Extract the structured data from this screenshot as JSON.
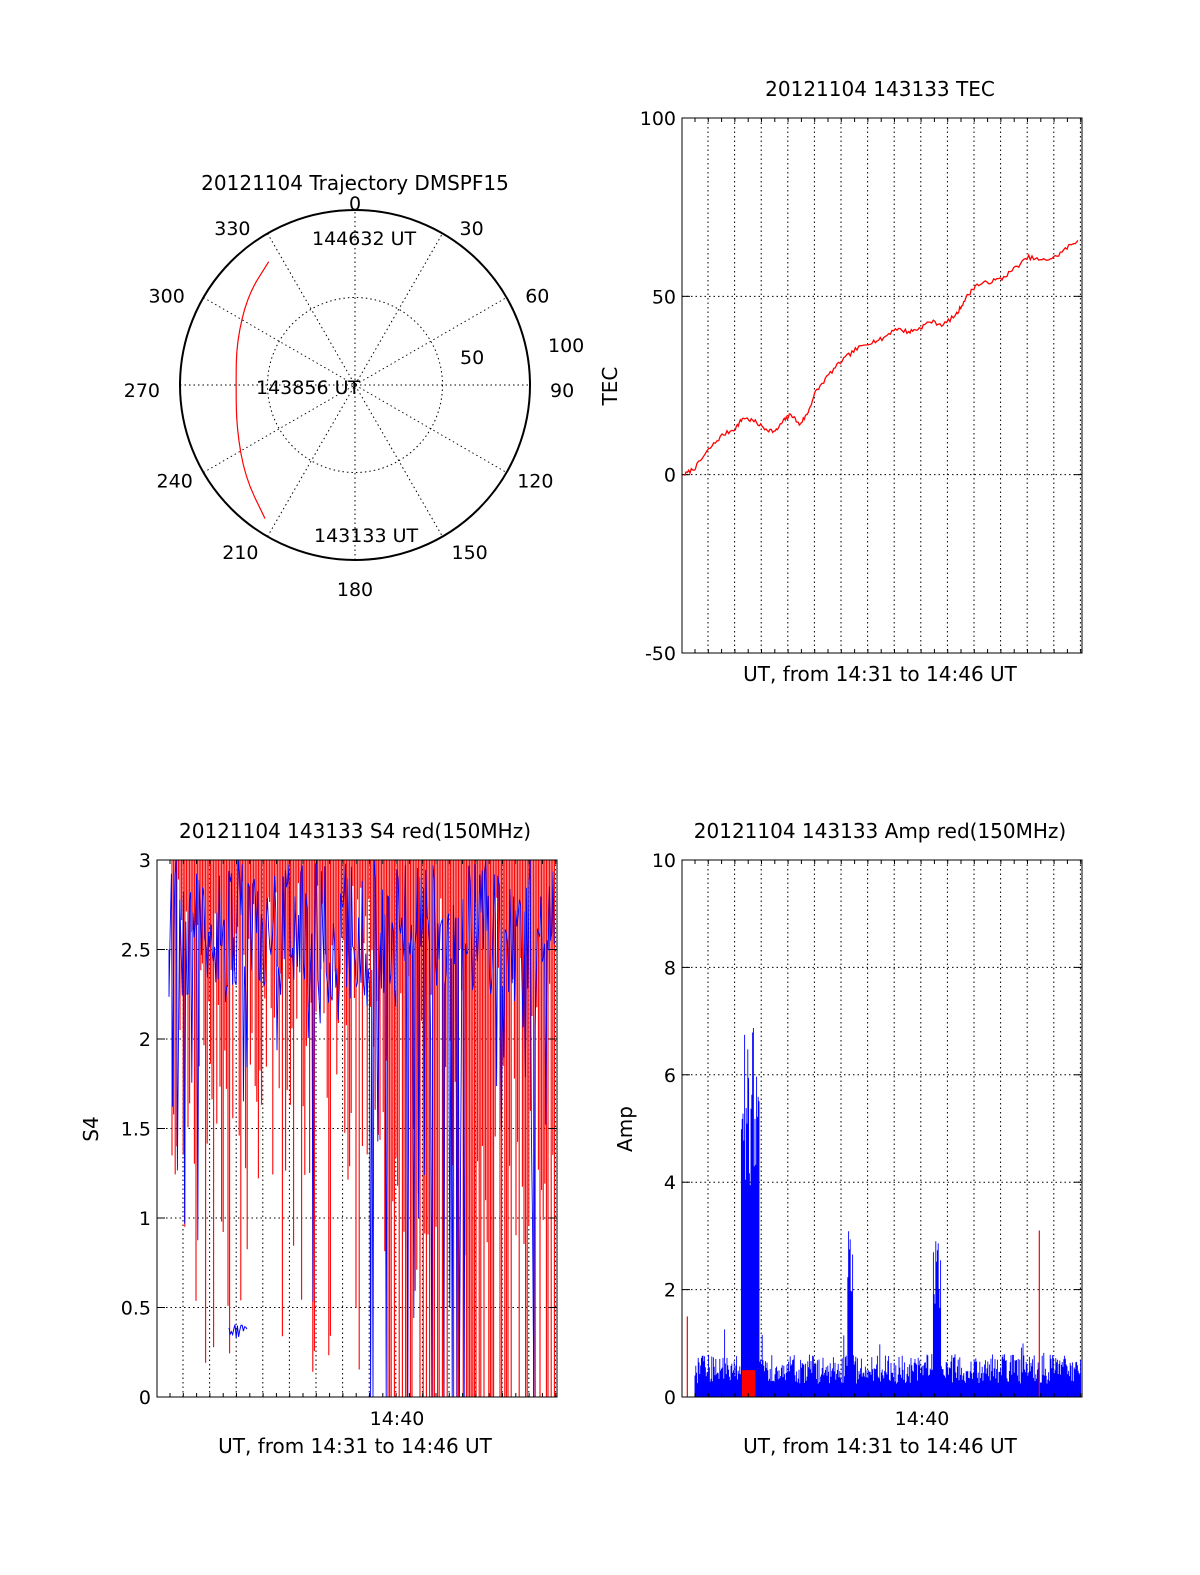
{
  "chart_data": [
    {
      "type": "polar",
      "title": "20121104 Trajectory DMSPF15",
      "angle_labels": [
        "0",
        "30",
        "60",
        "90",
        "120",
        "150",
        "180",
        "210",
        "240",
        "270",
        "300",
        "330"
      ],
      "radius_labels": [
        "50",
        "100"
      ],
      "rlim": [
        0,
        100
      ],
      "grid": true,
      "trajectory": {
        "color": "#ff0000",
        "points": [
          {
            "azimuth": 325,
            "zenith": 86
          },
          {
            "azimuth": 310,
            "zenith": 80
          },
          {
            "azimuth": 290,
            "zenith": 72
          },
          {
            "azimuth": 270,
            "zenith": 68
          },
          {
            "azimuth": 250,
            "zenith": 72
          },
          {
            "azimuth": 230,
            "zenith": 82
          },
          {
            "azimuth": 214,
            "zenith": 92
          }
        ]
      },
      "annotations": [
        {
          "text": "144632 UT",
          "azimuth": 350,
          "zenith": 83
        },
        {
          "text": "143856 UT",
          "azimuth": 276,
          "zenith": 22
        },
        {
          "text": "143133 UT",
          "azimuth": 168,
          "zenith": 92
        }
      ]
    },
    {
      "type": "line",
      "title": "20121104 143133 TEC",
      "xlabel": "UT, from 14:31 to 14:46 UT",
      "ylabel": "TEC",
      "ylim": [
        -50,
        100
      ],
      "yticks": [
        "-50",
        "0",
        "50",
        "100"
      ],
      "xlim_minutes": [
        0,
        15
      ],
      "grid": true,
      "series": [
        {
          "color": "#ff0000",
          "x_minutes": [
            0.1,
            0.5,
            1.0,
            1.5,
            2.0,
            2.3,
            2.7,
            3.1,
            3.5,
            3.8,
            4.1,
            4.4,
            4.7,
            5.0,
            5.5,
            6.0,
            6.5,
            7.0,
            7.5,
            8.0,
            8.5,
            8.9,
            9.3,
            9.8,
            10.3,
            10.6,
            11.0,
            11.5,
            12.0,
            12.5,
            13.0,
            13.5,
            14.0,
            14.5,
            14.9
          ],
          "y": [
            0,
            2,
            7,
            11,
            13,
            16,
            15,
            13,
            12,
            15,
            17,
            14,
            17,
            23,
            28,
            32,
            35,
            37,
            38,
            41,
            40,
            41,
            43,
            42,
            45,
            49,
            53,
            54,
            55,
            58,
            61,
            60,
            61,
            64,
            66
          ]
        }
      ]
    },
    {
      "type": "line",
      "title": "20121104 143133 S4 red(150MHz)",
      "xlabel": "UT, from 14:31 to 14:46 UT",
      "ylabel": "S4",
      "ylim": [
        0,
        3
      ],
      "yticks": [
        "0",
        "0.5",
        "1",
        "1.5",
        "2",
        "2.5",
        "3"
      ],
      "xticks": [
        "14:40"
      ],
      "xlim_minutes": [
        0,
        15
      ],
      "grid": true,
      "series": [
        {
          "name": "",
          "color": "#ff0000",
          "note": "dense, saturated"
        },
        {
          "name": "",
          "color": "#0000ff",
          "note": "dense, saturated"
        }
      ]
    },
    {
      "type": "line",
      "title": "20121104 143133 Amp red(150MHz)",
      "xlabel": "UT, from 14:31 to 14:46 UT",
      "ylabel": "Amp",
      "ylim": [
        0,
        10
      ],
      "yticks": [
        "0",
        "2",
        "4",
        "6",
        "8",
        "10"
      ],
      "xticks": [
        "14:40"
      ],
      "xlim_minutes": [
        0,
        15
      ],
      "grid": true,
      "series": [
        {
          "color": "#0000ff",
          "bursts": [
            {
              "x_start": 2.2,
              "x_end": 2.9,
              "peak": 6.9
            },
            {
              "x_start": 6.2,
              "x_end": 6.4,
              "peak": 3.5
            },
            {
              "x_start": 9.4,
              "x_end": 9.7,
              "peak": 2.9
            }
          ]
        },
        {
          "color": "#ff0000",
          "spikes": [
            {
              "x": 0.2,
              "peak": 1.5
            },
            {
              "x": 13.4,
              "peak": 3.1
            }
          ]
        }
      ]
    }
  ]
}
